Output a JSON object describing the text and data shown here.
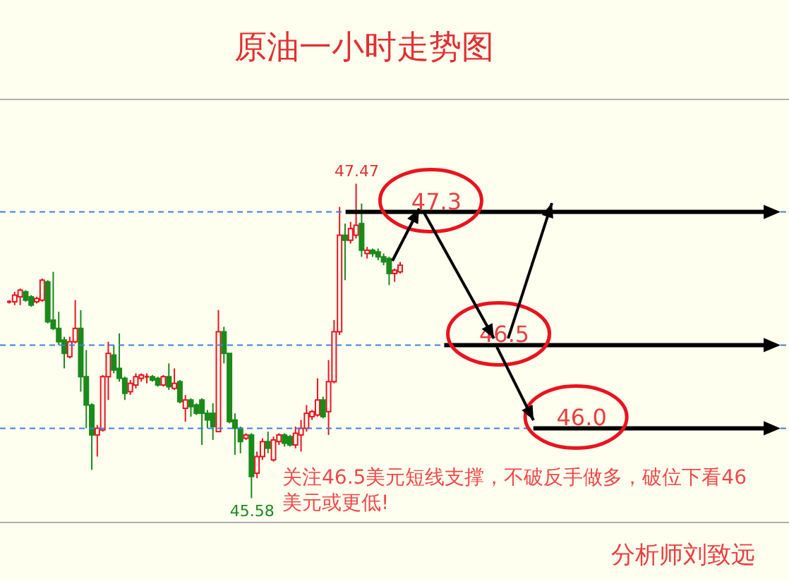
{
  "chart_data": {
    "type": "candlestick",
    "title": "原油一小时走势图",
    "categories": [
      null,
      null,
      null,
      null,
      null,
      null,
      null,
      null,
      null,
      null,
      null,
      null,
      null,
      null,
      null,
      null,
      null,
      null,
      null,
      null,
      null,
      null,
      null,
      null,
      null,
      null,
      null,
      null,
      null,
      null,
      null,
      null,
      null,
      null,
      null,
      null,
      null,
      null,
      null,
      null,
      null,
      null,
      null,
      null,
      null,
      null,
      null,
      null,
      null,
      null,
      null,
      null,
      null,
      null,
      null,
      null,
      null,
      null,
      null,
      null,
      null,
      null,
      null,
      null,
      null,
      null,
      null,
      null,
      null,
      null,
      null,
      null,
      null,
      null,
      null,
      null,
      null,
      null,
      null,
      null,
      null,
      null,
      null,
      null,
      null,
      null,
      null,
      null,
      null,
      null,
      null,
      null,
      null,
      null,
      null,
      null,
      null,
      null,
      null,
      null,
      null,
      null,
      null,
      null,
      null,
      null,
      null,
      null,
      null,
      null,
      null,
      null,
      null,
      null,
      null,
      null,
      null,
      null,
      null,
      null,
      null,
      null,
      null,
      null,
      null,
      null,
      null,
      null,
      null,
      null,
      null,
      null,
      null,
      null,
      null,
      null,
      null,
      null,
      null,
      null,
      null,
      null
    ],
    "ohlc": [
      [
        46.76,
        46.77,
        46.75,
        46.76
      ],
      [
        46.76,
        46.82,
        46.74,
        46.8
      ],
      [
        46.79,
        46.84,
        46.74,
        46.83
      ],
      [
        46.82,
        46.83,
        46.76,
        46.77
      ],
      [
        46.79,
        46.8,
        46.73,
        46.74
      ],
      [
        46.76,
        46.79,
        46.75,
        46.78
      ],
      [
        46.77,
        46.9,
        46.76,
        46.89
      ],
      [
        46.88,
        46.89,
        46.63,
        46.64
      ],
      [
        46.65,
        46.94,
        46.59,
        46.6
      ],
      [
        46.6,
        46.7,
        46.5,
        46.52
      ],
      [
        46.53,
        46.55,
        46.36,
        46.45
      ],
      [
        46.43,
        46.55,
        46.42,
        46.52
      ],
      [
        46.52,
        46.77,
        46.51,
        46.6
      ],
      [
        46.6,
        46.71,
        46.22,
        46.31
      ],
      [
        46.31,
        46.47,
        46.0,
        46.14
      ],
      [
        46.14,
        46.15,
        45.75,
        45.96
      ],
      [
        45.96,
        46.02,
        45.83,
        46.0
      ],
      [
        45.99,
        46.32,
        45.98,
        46.31
      ],
      [
        46.31,
        46.52,
        46.17,
        46.45
      ],
      [
        46.44,
        46.5,
        46.33,
        46.35
      ],
      [
        46.36,
        46.57,
        46.28,
        46.3
      ],
      [
        46.3,
        46.31,
        46.17,
        46.21
      ],
      [
        46.22,
        46.29,
        46.2,
        46.27
      ],
      [
        46.26,
        46.33,
        46.24,
        46.31
      ],
      [
        46.3,
        46.33,
        46.28,
        46.32
      ],
      [
        46.31,
        46.33,
        46.27,
        46.31
      ],
      [
        46.31,
        46.32,
        46.28,
        46.29
      ],
      [
        46.3,
        46.31,
        46.25,
        46.26
      ],
      [
        46.26,
        46.32,
        46.25,
        46.31
      ],
      [
        46.31,
        46.39,
        46.23,
        46.25
      ],
      [
        46.24,
        46.36,
        46.23,
        46.27
      ],
      [
        46.28,
        46.29,
        46.15,
        46.16
      ],
      [
        46.12,
        46.2,
        46.04,
        46.17
      ],
      [
        46.17,
        46.18,
        46.07,
        46.13
      ],
      [
        46.14,
        46.15,
        46.08,
        46.09
      ],
      [
        46.17,
        46.18,
        45.9,
        46.09
      ],
      [
        46.09,
        46.11,
        46.0,
        46.05
      ],
      [
        46.09,
        46.15,
        45.93,
        46.01
      ],
      [
        45.98,
        46.71,
        45.98,
        46.58
      ],
      [
        46.58,
        46.61,
        46.39,
        46.45
      ],
      [
        46.45,
        46.45,
        46.03,
        46.04
      ],
      [
        46.05,
        46.09,
        45.84,
        46.0
      ],
      [
        46.0,
        46.01,
        45.85,
        45.92
      ],
      [
        45.94,
        45.97,
        45.93,
        45.96
      ],
      [
        45.96,
        45.97,
        45.58,
        45.71
      ],
      [
        45.73,
        45.86,
        45.7,
        45.83
      ],
      [
        45.83,
        45.94,
        45.81,
        45.92
      ],
      [
        45.92,
        45.98,
        45.85,
        45.88
      ],
      [
        45.81,
        45.95,
        45.8,
        45.93
      ],
      [
        45.92,
        45.97,
        45.9,
        45.96
      ],
      [
        45.96,
        45.97,
        45.89,
        45.91
      ],
      [
        45.95,
        45.96,
        45.89,
        45.9
      ],
      [
        45.9,
        46.01,
        45.88,
        45.97
      ],
      [
        45.96,
        46.05,
        45.86,
        46.0
      ],
      [
        46.0,
        46.14,
        45.98,
        46.09
      ],
      [
        46.07,
        46.11,
        46.05,
        46.1
      ],
      [
        46.08,
        46.3,
        46.07,
        46.17
      ],
      [
        46.17,
        46.19,
        46.06,
        46.07
      ],
      [
        46.1,
        46.41,
        45.96,
        46.28
      ],
      [
        46.28,
        46.65,
        46.27,
        46.58
      ],
      [
        46.58,
        47.33,
        46.56,
        47.16
      ],
      [
        47.16,
        47.23,
        46.89,
        47.13
      ],
      [
        47.13,
        47.24,
        47.11,
        47.2
      ],
      [
        47.16,
        47.47,
        47.14,
        47.22
      ],
      [
        47.23,
        47.35,
        47.03,
        47.07
      ],
      [
        47.05,
        47.09,
        47.02,
        47.07
      ],
      [
        47.07,
        47.08,
        47.03,
        47.05
      ],
      [
        47.06,
        47.08,
        47.01,
        47.03
      ],
      [
        47.03,
        47.05,
        46.98,
        47.0
      ],
      [
        47.02,
        47.03,
        46.86,
        46.93
      ],
      [
        46.93,
        46.96,
        46.88,
        46.95
      ],
      [
        46.94,
        47.0,
        46.93,
        46.98
      ],
      null,
      null,
      null,
      null,
      null,
      null,
      null,
      null,
      null,
      null,
      null,
      null,
      null,
      null,
      null,
      null,
      null,
      null,
      null,
      null,
      null,
      null,
      null,
      null,
      null,
      null,
      null,
      null,
      null,
      null,
      null,
      null,
      null,
      null,
      null,
      null,
      null,
      null,
      null,
      null,
      null,
      null,
      null,
      null,
      null,
      null,
      null,
      null,
      null,
      null,
      null,
      null,
      null,
      null,
      null,
      null,
      null,
      null,
      null,
      null,
      null,
      null,
      null,
      null,
      null,
      null,
      null,
      null,
      null,
      null
    ],
    "ref_lines": [
      {
        "axis": "y",
        "value": 47.3,
        "label": "47.3",
        "color": "#3d7fe0",
        "line_style": "dashed"
      },
      {
        "axis": "y",
        "value": 46.5,
        "label": "46.5",
        "color": "#3d7fe0",
        "line_style": "dashed"
      },
      {
        "axis": "y",
        "value": 46.0,
        "label": "46.0",
        "color": "#3d7fe0",
        "line_style": "dashed"
      }
    ],
    "annotations": [
      {
        "text": "47.47",
        "y": 47.47
      },
      {
        "text": "45.58",
        "y": 45.58
      },
      "关注46.5美元短线支撑，不破反手做多，破位下看46\n美元或更低!",
      "分析师刘致远"
    ]
  }
}
